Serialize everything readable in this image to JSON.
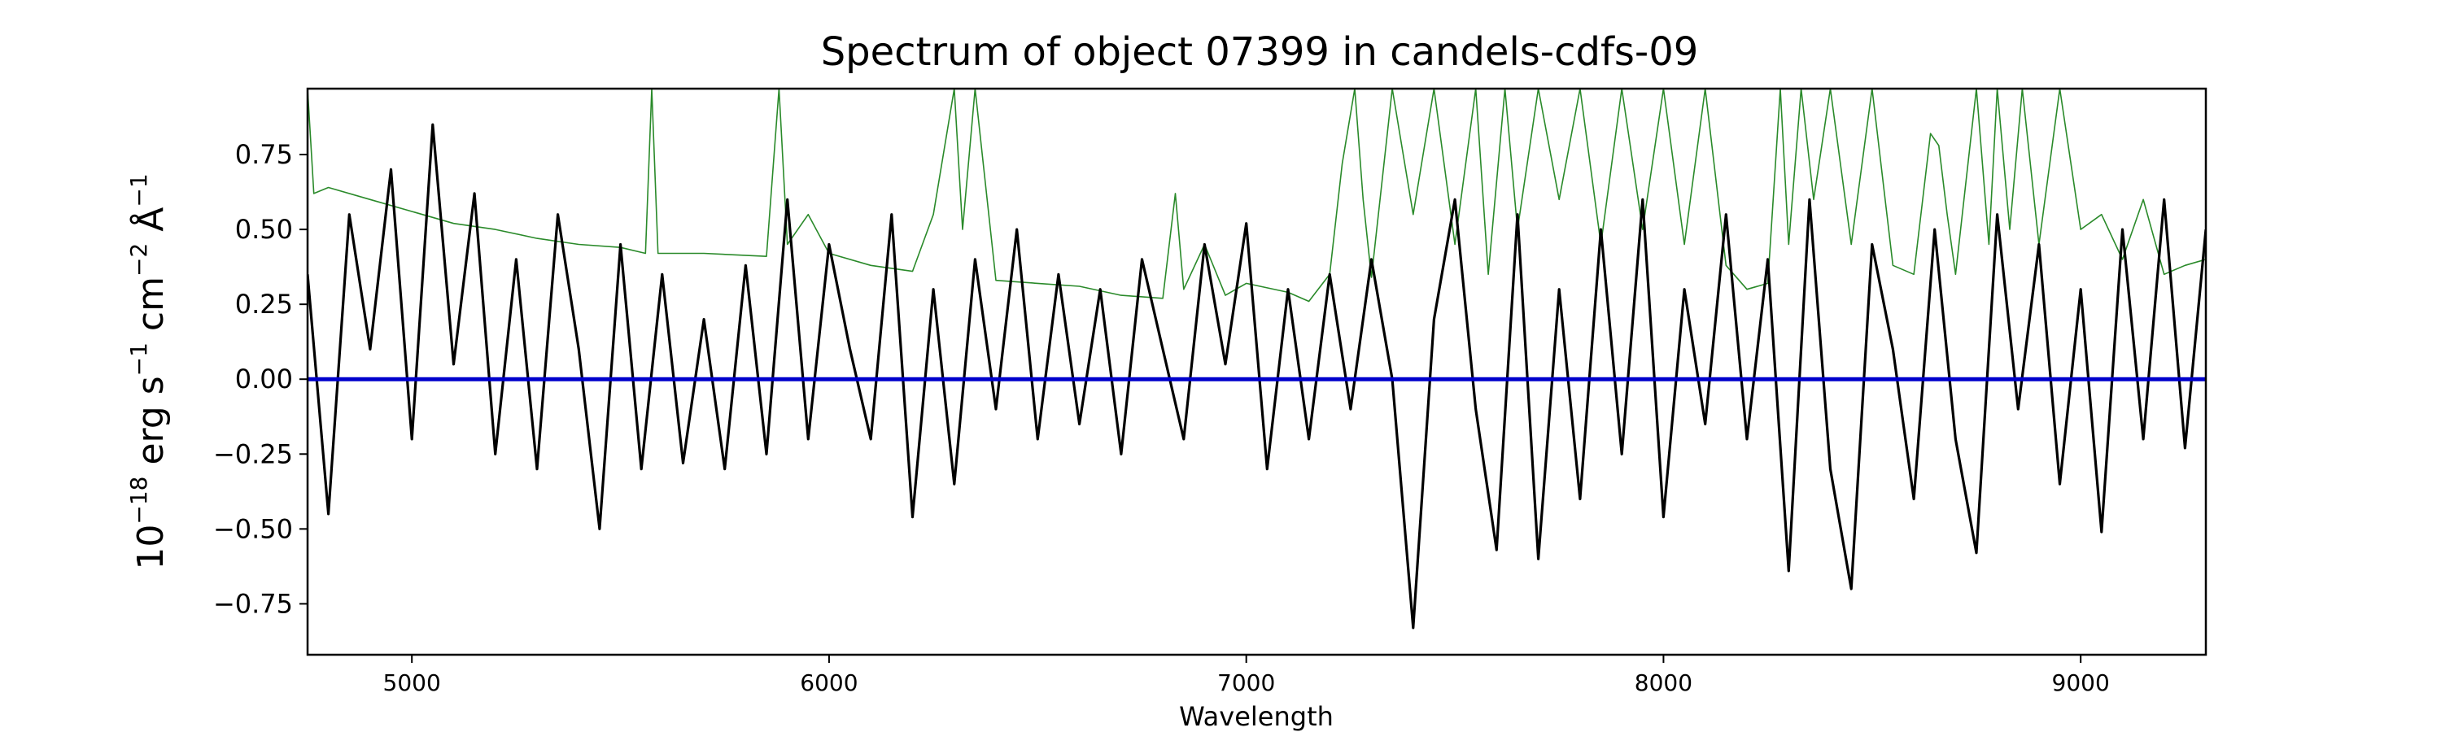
{
  "chart_data": {
    "type": "line",
    "title": "Spectrum of object 07399 in candels-cdfs-09",
    "xlabel": "Wavelength",
    "ylabel": {
      "base": "10",
      "exp": "−18",
      "unit1": " erg s",
      "exp1": "−1",
      "unit2": " cm",
      "exp2": "−2",
      "unit3": " Å",
      "exp3": "−1"
    },
    "xlim": [
      4750,
      9300
    ],
    "ylim": [
      -0.92,
      0.97
    ],
    "xticks": [
      5000,
      6000,
      7000,
      8000,
      9000
    ],
    "xtick_labels": [
      "5000",
      "6000",
      "7000",
      "8000",
      "9000"
    ],
    "yticks": [
      -0.75,
      -0.5,
      -0.25,
      0.0,
      0.25,
      0.5,
      0.75
    ],
    "ytick_labels": [
      "−0.75",
      "−0.50",
      "−0.25",
      "0.00",
      "0.25",
      "0.50",
      "0.75"
    ],
    "grid": false,
    "series": [
      {
        "role": "flux",
        "color": "#000000",
        "x": [
          4750,
          4800,
          4850,
          4900,
          4950,
          5000,
          5050,
          5100,
          5150,
          5200,
          5250,
          5300,
          5350,
          5400,
          5450,
          5500,
          5550,
          5600,
          5650,
          5700,
          5750,
          5800,
          5850,
          5900,
          5950,
          6000,
          6050,
          6100,
          6150,
          6200,
          6250,
          6300,
          6350,
          6400,
          6450,
          6500,
          6550,
          6600,
          6650,
          6700,
          6750,
          6800,
          6850,
          6900,
          6950,
          7000,
          7050,
          7100,
          7150,
          7200,
          7250,
          7300,
          7350,
          7400,
          7450,
          7500,
          7550,
          7600,
          7650,
          7700,
          7750,
          7800,
          7850,
          7900,
          7950,
          8000,
          8050,
          8100,
          8150,
          8200,
          8250,
          8300,
          8350,
          8400,
          8450,
          8500,
          8550,
          8600,
          8650,
          8700,
          8750,
          8800,
          8850,
          8900,
          8950,
          9000,
          9050,
          9100,
          9150,
          9200,
          9250,
          9300
        ],
        "y": [
          0.35,
          -0.45,
          0.55,
          0.1,
          0.7,
          -0.2,
          0.85,
          0.05,
          0.62,
          -0.25,
          0.4,
          -0.3,
          0.55,
          0.1,
          -0.5,
          0.45,
          -0.3,
          0.35,
          -0.28,
          0.2,
          -0.3,
          0.38,
          -0.25,
          0.6,
          -0.2,
          0.45,
          0.1,
          -0.2,
          0.55,
          -0.46,
          0.3,
          -0.35,
          0.4,
          -0.1,
          0.5,
          -0.2,
          0.35,
          -0.15,
          0.3,
          -0.25,
          0.4,
          0.1,
          -0.2,
          0.45,
          0.05,
          0.52,
          -0.3,
          0.3,
          -0.2,
          0.35,
          -0.1,
          0.4,
          0.0,
          -0.83,
          0.2,
          0.6,
          -0.1,
          -0.57,
          0.55,
          -0.6,
          0.3,
          -0.4,
          0.5,
          -0.25,
          0.6,
          -0.46,
          0.3,
          -0.15,
          0.55,
          -0.2,
          0.4,
          -0.64,
          0.6,
          -0.3,
          -0.7,
          0.45,
          0.1,
          -0.4,
          0.5,
          -0.2,
          -0.58,
          0.55,
          -0.1,
          0.45,
          -0.35,
          0.3,
          -0.51,
          0.5,
          -0.2,
          0.6,
          -0.23,
          0.5
        ]
      },
      {
        "role": "error",
        "color": "#2a8a2a",
        "x": [
          4750,
          4765,
          4800,
          4900,
          5000,
          5100,
          5200,
          5300,
          5400,
          5500,
          5560,
          5575,
          5590,
          5700,
          5850,
          5880,
          5900,
          5950,
          6000,
          6100,
          6200,
          6250,
          6300,
          6320,
          6350,
          6400,
          6500,
          6600,
          6700,
          6800,
          6830,
          6850,
          6900,
          6950,
          7000,
          7100,
          7150,
          7200,
          7230,
          7260,
          7280,
          7300,
          7350,
          7400,
          7450,
          7500,
          7550,
          7580,
          7620,
          7650,
          7700,
          7750,
          7800,
          7850,
          7900,
          7950,
          8000,
          8050,
          8100,
          8150,
          8200,
          8250,
          8280,
          8300,
          8330,
          8360,
          8400,
          8450,
          8500,
          8550,
          8600,
          8640,
          8660,
          8680,
          8700,
          8750,
          8780,
          8800,
          8830,
          8860,
          8900,
          8950,
          9000,
          9050,
          9100,
          9150,
          9200,
          9250,
          9300
        ],
        "y": [
          0.97,
          0.62,
          0.64,
          0.6,
          0.56,
          0.52,
          0.5,
          0.47,
          0.45,
          0.44,
          0.42,
          0.97,
          0.42,
          0.42,
          0.41,
          0.97,
          0.45,
          0.55,
          0.42,
          0.38,
          0.36,
          0.55,
          0.97,
          0.5,
          0.97,
          0.33,
          0.32,
          0.31,
          0.28,
          0.27,
          0.62,
          0.3,
          0.45,
          0.28,
          0.32,
          0.29,
          0.26,
          0.35,
          0.72,
          0.97,
          0.6,
          0.34,
          0.97,
          0.55,
          0.97,
          0.45,
          0.97,
          0.35,
          0.97,
          0.5,
          0.97,
          0.6,
          0.97,
          0.45,
          0.97,
          0.5,
          0.97,
          0.45,
          0.97,
          0.38,
          0.3,
          0.32,
          0.97,
          0.45,
          0.97,
          0.6,
          0.97,
          0.45,
          0.97,
          0.38,
          0.35,
          0.82,
          0.78,
          0.55,
          0.35,
          0.97,
          0.45,
          0.97,
          0.5,
          0.97,
          0.45,
          0.97,
          0.5,
          0.55,
          0.4,
          0.6,
          0.35,
          0.38,
          0.4
        ]
      },
      {
        "role": "zero",
        "color": "#0000cc",
        "x": [
          4750,
          9300
        ],
        "y": [
          0.0,
          0.0
        ]
      }
    ]
  }
}
